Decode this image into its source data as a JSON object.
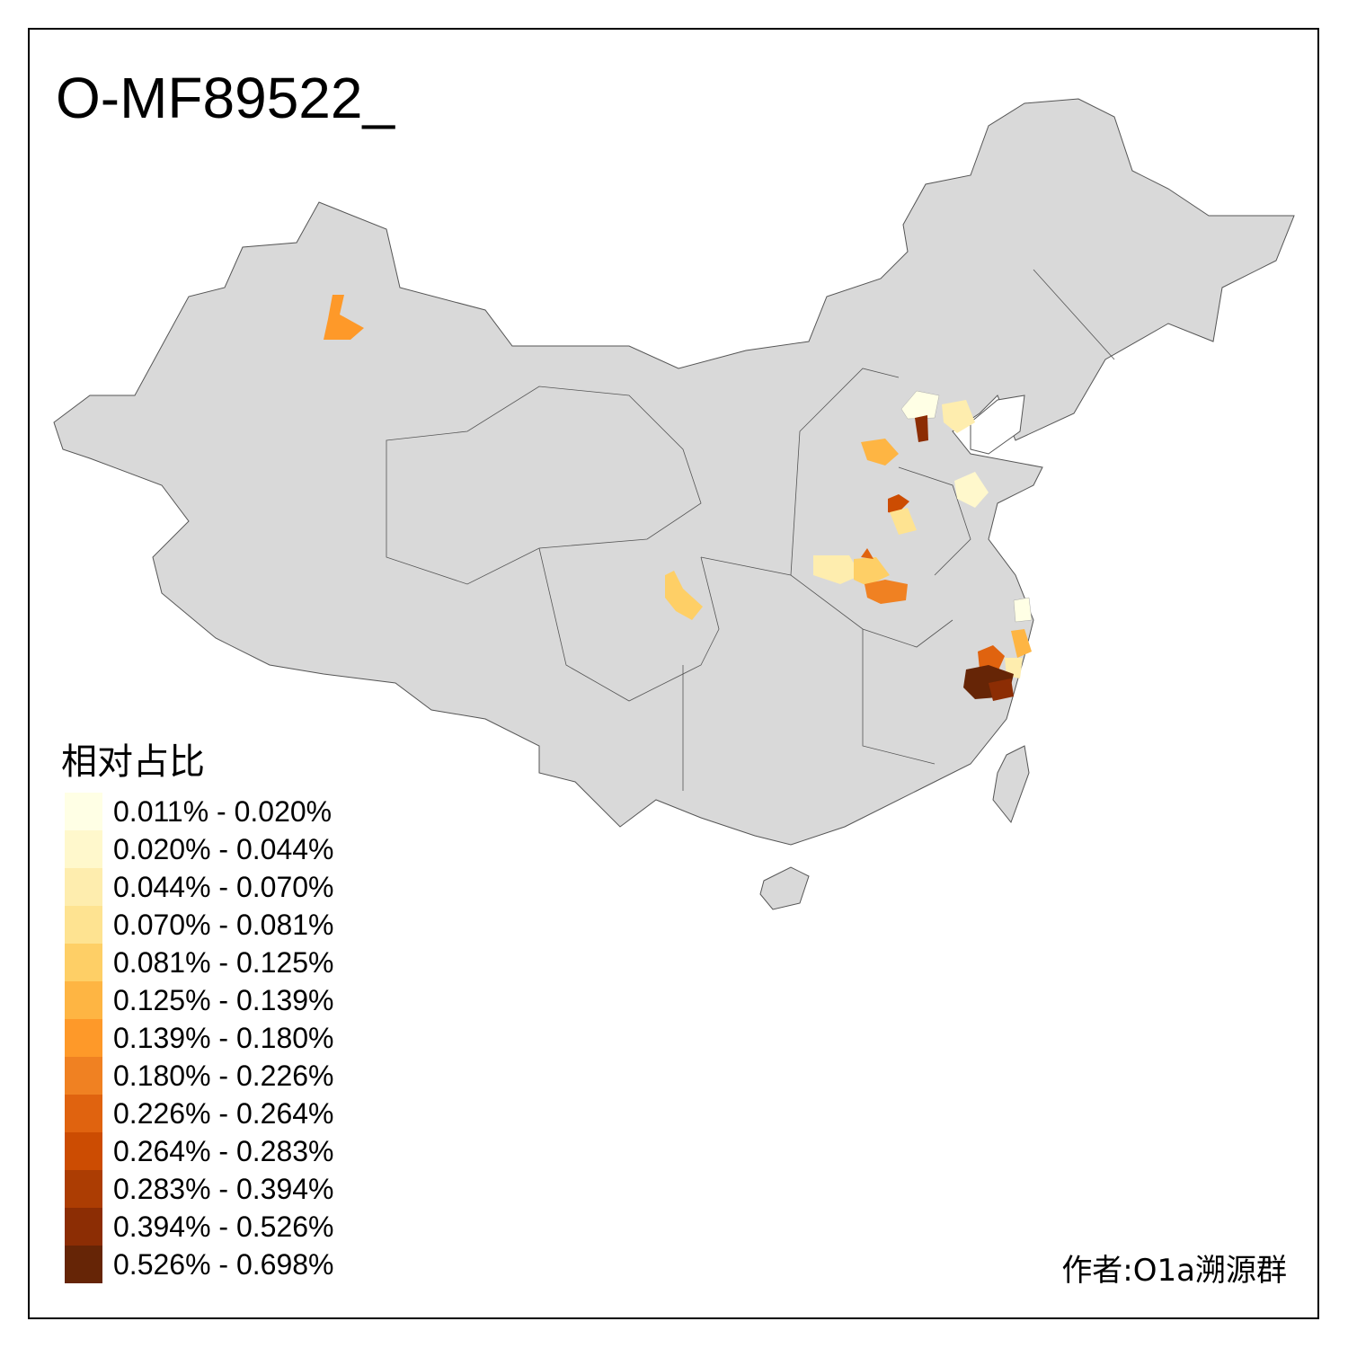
{
  "title": "O-MF89522_",
  "legend": {
    "title": "相对占比",
    "items": [
      {
        "label": "0.011% - 0.020%",
        "color": "#FFFFE5"
      },
      {
        "label": "0.020% - 0.044%",
        "color": "#FFF8CC"
      },
      {
        "label": "0.044% - 0.070%",
        "color": "#FEEDAE"
      },
      {
        "label": "0.070% - 0.081%",
        "color": "#FEE391"
      },
      {
        "label": "0.081% - 0.125%",
        "color": "#FECF66"
      },
      {
        "label": "0.125% - 0.139%",
        "color": "#FEB543"
      },
      {
        "label": "0.139% - 0.180%",
        "color": "#FE9929"
      },
      {
        "label": "0.180% - 0.226%",
        "color": "#F08122"
      },
      {
        "label": "0.226% - 0.264%",
        "color": "#E0630F"
      },
      {
        "label": "0.264% - 0.283%",
        "color": "#CC4C02"
      },
      {
        "label": "0.283% - 0.394%",
        "color": "#AC3D03"
      },
      {
        "label": "0.394% - 0.526%",
        "color": "#8C2D04"
      },
      {
        "label": "0.526% - 0.698%",
        "color": "#662506"
      }
    ]
  },
  "credit": "作者:O1a溯源群",
  "base_color": "#D9D9D9"
}
